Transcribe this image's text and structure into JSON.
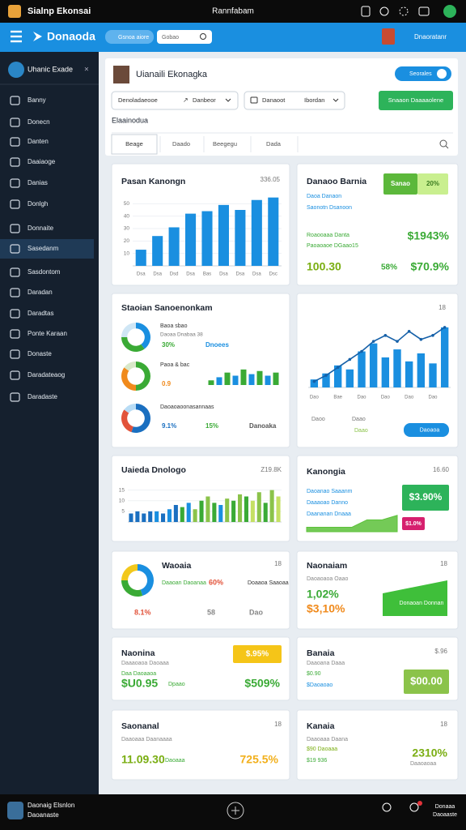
{
  "status_bar": {
    "app": "Sialnp Ekonsai",
    "center": "Rannfabam"
  },
  "header": {
    "brand": "Donaoda",
    "pill": "Gsnoa aiore",
    "search": "Gobao",
    "user": "Dnaoratanr"
  },
  "sidebar": {
    "title": "Uhanic Exade",
    "active": 7,
    "items": [
      "Banny",
      "Donecn",
      "Danten",
      "Daaiaoge",
      "Danias",
      "Donlgh",
      "Donnaite",
      "Sasedanm",
      "Sasdontom",
      "Daradan",
      "Daradtas",
      "Ponte Karaan",
      "Donaste",
      "Daradateaog",
      "Daradaste"
    ]
  },
  "profile": {
    "name": "Uianaili Ekonagka",
    "toggle": "Seorales",
    "filters": [
      "Denoladaeooe",
      "Danbeor",
      "Danaoot",
      "Ibordan"
    ],
    "action": "Snaaon Daaaaolene",
    "section": "Elaainodua",
    "tabs": [
      "Beage",
      "Daado",
      "Beegegu",
      "Dada"
    ]
  },
  "cards": [
    {
      "title": "Pasan Kanongn",
      "corner": "336.05",
      "chart_data": {
        "type": "bar",
        "categories": [
          "Dsa",
          "Dsa",
          "Dsd",
          "Dsa",
          "Bas",
          "Dsa",
          "Dsa",
          "Dsa",
          "Dsc"
        ],
        "values": [
          13,
          24,
          31,
          42,
          44,
          49,
          45,
          53,
          55
        ],
        "color": "#1a8fe0",
        "ylim": [
          0,
          60
        ],
        "yticks": [
          10,
          20,
          30,
          40,
          50
        ]
      }
    },
    {
      "title": "Danaoo Barnia",
      "badges": [
        {
          "text": "Sanao",
          "color": "#5cb83b",
          "text_color": "#ffffff"
        },
        {
          "text": "20%",
          "color": "#c9ef8f",
          "text_color": "#3a7a20"
        }
      ],
      "notes": [
        {
          "text": "Daoa Danaon",
          "color": "#1a8fe0"
        },
        {
          "text": "Saonotn Dsanoon",
          "color": "#1a8fe0"
        },
        {
          "text": "Roaooaaa Danta",
          "color": "#3aaa35"
        },
        {
          "text": "Paoaoaoe DGaao15",
          "color": "#3aaa35"
        }
      ],
      "figures": [
        {
          "text": "$1943%",
          "color": "#3aaa35"
        },
        {
          "text": "100.30",
          "color": "#7aae12"
        },
        {
          "text": "58%",
          "color": "#3aaa35"
        },
        {
          "text": "$70.9%",
          "color": "#3aaa35"
        }
      ]
    },
    {
      "title": "Staoian Sanoenonkam",
      "donuts": [
        {
          "chart_data": {
            "type": "pie",
            "values": [
              40,
              35,
              25
            ],
            "colors": [
              "#1a8fe0",
              "#3aaa35",
              "#cfe6f5"
            ]
          },
          "label": "Baoa sbao",
          "note": "Daoaa Dnabaa 38",
          "stats": [
            {
              "text": "30%",
              "color": "#3aaa35"
            },
            {
              "text": "Dnoees",
              "color": "#1a8fe0"
            }
          ]
        },
        {
          "chart_data": {
            "type": "pie",
            "values": [
              50,
              35,
              15
            ],
            "colors": [
              "#3aaa35",
              "#f08a1c",
              "#d9e8c9"
            ]
          },
          "label": "Paoa & bac",
          "stats": [
            {
              "text": "0.9",
              "color": "#f08a1c"
            }
          ],
          "bars": {
            "values": [
              3,
              5,
              8,
              6,
              10,
              7,
              9,
              6,
              8
            ],
            "colors": [
              "#3aaa35",
              "#1a8fe0"
            ],
            "ylim": [
              0,
              12
            ]
          }
        },
        {
          "chart_data": {
            "type": "pie",
            "values": [
              55,
              30,
              15
            ],
            "colors": [
              "#1a6fc0",
              "#e2533a",
              "#b8dcf5"
            ]
          },
          "label": "Daoaoaoonasannaas",
          "stats": [
            {
              "text": "9.1%",
              "color": "#1a6fc0"
            },
            {
              "text": "15%",
              "color": "#3aaa35"
            },
            {
              "text": "Danoaka",
              "color": "#555555"
            }
          ]
        }
      ]
    },
    {
      "corner": "18",
      "chart_data": {
        "type": "bar",
        "categories": [
          "Dao",
          null,
          "Bae",
          null,
          "Dao",
          null,
          "Dao",
          null,
          "Dao",
          null,
          "Dao",
          null
        ],
        "ylim": [
          0,
          34
        ],
        "series": [
          {
            "type": "bar",
            "color": "#1a8fe0",
            "values": [
              4,
              7,
              11,
              9,
              18,
              22,
              15,
              19,
              13,
              17,
              12,
              30
            ]
          },
          {
            "type": "line",
            "color": "#1560a8",
            "values": [
              3,
              6,
              10,
              14,
              18,
              23,
              26,
              23,
              28,
              24,
              26,
              30
            ]
          }
        ]
      },
      "notes": [
        {
          "text": "Daoo",
          "color": "#777777"
        },
        {
          "text": "Daao",
          "color": "#777777"
        },
        {
          "text": "Daao",
          "color": "#8bc34a"
        }
      ],
      "button": "Daoaoa"
    },
    {
      "title": "Uaieda Dnologo",
      "corner": "Z19.8K",
      "chart_data": {
        "type": "bar",
        "ylim": [
          0,
          16
        ],
        "yticks": [
          5,
          10,
          15
        ],
        "values": [
          4,
          5,
          4,
          5,
          5,
          4,
          6,
          8,
          7,
          9,
          6,
          10,
          12,
          9,
          8,
          11,
          10,
          13,
          12,
          10,
          14,
          9,
          15,
          12
        ],
        "colors": [
          "#1a6fc0",
          "#1a6fc0",
          "#1a6fc0",
          "#1a6fc0",
          "#1a8fe0",
          "#1a6fc0",
          "#1a8fe0",
          "#1a6fc0",
          "#3aaa35",
          "#1a8fe0",
          "#8bc34a",
          "#3aaa35",
          "#8bc34a",
          "#3aaa35",
          "#1a8fe0",
          "#8bc34a",
          "#3aaa35",
          "#8bc34a",
          "#3aaa35",
          "#c5e063",
          "#8bc34a",
          "#3aaa35",
          "#8bc34a",
          "#c5e063"
        ]
      }
    },
    {
      "title": "Kanongia",
      "corner": "16.60",
      "notes": [
        {
          "text": "Daoanao Saaanm",
          "color": "#1a8fe0"
        },
        {
          "text": "Daaaoao Danno",
          "color": "#1a8fe0"
        },
        {
          "text": "Daananan Dnaaa",
          "color": "#1a8fe0"
        }
      ],
      "badges": [
        {
          "text": "$3.90%",
          "color": "#2db35a",
          "text_color": "#ffffff"
        },
        {
          "text": "$1.0%",
          "color": "#d6206e",
          "text_color": "#ffffff"
        }
      ],
      "chart_data": {
        "type": "area",
        "values": [
          3,
          3,
          3,
          3,
          8,
          8,
          11
        ],
        "color": "#5cc13a",
        "ylim": [
          0,
          12
        ]
      }
    },
    {
      "title": "Waoaia",
      "corner": "18",
      "chart_data": {
        "type": "pie",
        "values": [
          45,
          30,
          25
        ],
        "colors": [
          "#1a8fe0",
          "#3aaa35",
          "#f2c81c"
        ]
      },
      "notes": [
        {
          "text": "Daaoan Daoanaa",
          "color": "#3aaa35"
        },
        {
          "text": "Doaaoa Saaoaa",
          "color": "#333333"
        }
      ],
      "figures": [
        {
          "text": "60%",
          "color": "#e2533a"
        },
        {
          "text": "8.1%",
          "color": "#e2533a"
        },
        {
          "text": "58",
          "color": "#888888"
        },
        {
          "text": "Dao",
          "color": "#888888"
        }
      ]
    },
    {
      "title": "Naonaiam",
      "corner": "18",
      "notes": [
        {
          "text": "Daoaoaoa Oaao",
          "color": "#888888"
        }
      ],
      "figures": [
        {
          "text": "1,02%",
          "color": "#3aaa35"
        },
        {
          "text": "$3,10%",
          "color": "#f08a1c"
        }
      ],
      "banner": "Donaoan Donnan"
    },
    {
      "title": "Naonina",
      "badges": [
        {
          "text": "$.95%",
          "color": "#f5c518",
          "text_color": "#ffffff"
        }
      ],
      "notes": [
        {
          "text": "Daaaoaoa Daoaaa",
          "color": "#888888"
        },
        {
          "text": "Daa Daoaaoa",
          "color": "#3aaa35"
        },
        {
          "text": "Dpaao",
          "color": "#3aaa35"
        }
      ],
      "figures": [
        {
          "text": "$U0.95",
          "color": "#3aaa35"
        },
        {
          "text": "$509%",
          "color": "#3aaa35"
        }
      ]
    },
    {
      "title": "Banaia",
      "corner": "$.96",
      "notes": [
        {
          "text": "Daaoana Daaa",
          "color": "#888888"
        },
        {
          "text": "$0.90",
          "color": "#3aaa35"
        },
        {
          "text": "$Daoaoao",
          "color": "#1a8fe0"
        }
      ],
      "badges": [
        {
          "text": "$00.00",
          "color": "#8bc34a",
          "text_color": "#ffffff"
        }
      ]
    },
    {
      "title": "Saonanal",
      "corner": "18",
      "notes": [
        {
          "text": "Daaoaaa Daanaaaa",
          "color": "#888888"
        },
        {
          "text": "Daoaaa",
          "color": "#3aaa35"
        }
      ],
      "figures": [
        {
          "text": "11.09.30",
          "color": "#7aae12"
        },
        {
          "text": "725.5%",
          "color": "#f2b01c"
        }
      ]
    },
    {
      "title": "Kanaia",
      "corner": "18",
      "notes": [
        {
          "text": "Daaoaaa Daana",
          "color": "#888888"
        },
        {
          "text": "$90 Daoaaa",
          "color": "#7aae12"
        },
        {
          "text": "$19 936",
          "color": "#3aaa35"
        },
        {
          "text": "Daaoaoaa",
          "color": "#888888"
        }
      ],
      "figures": [
        {
          "text": "2310%",
          "color": "#7aae12"
        }
      ]
    }
  ],
  "bottom_bar": {
    "title": "Daonaig Elsnlon",
    "subtitle": "Daoanaste",
    "menu": [
      "Donaaa",
      "Daoaaste"
    ]
  }
}
